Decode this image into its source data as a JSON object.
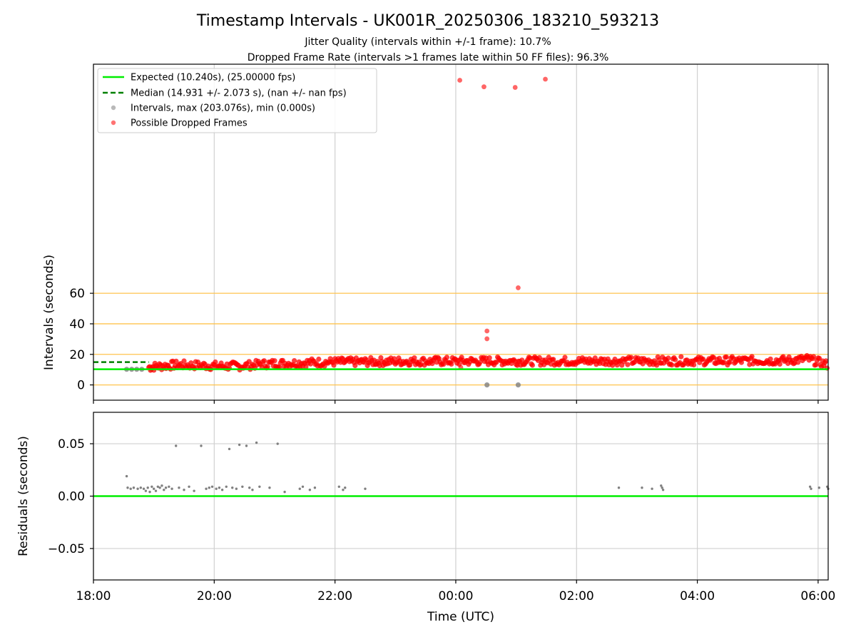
{
  "title": "Timestamp Intervals - UK001R_20250306_183210_593213",
  "subtitle_1": "Jitter Quality (intervals within +/-1 frame): 10.7%",
  "subtitle_2": "Dropped Frame Rate (intervals >1 frames late within 50 FF files): 96.3%",
  "colors": {
    "expected": "#00ee00",
    "median": "#008000",
    "intervals": "#808080",
    "dropped": "#ff0000",
    "threshold_lines": "#ffc34d",
    "grid": "#d0d0d0"
  },
  "chart_data": [
    {
      "type": "scatter",
      "ylabel": "Intervals (seconds)",
      "ylim": [
        -10,
        210
      ],
      "yticks": [
        0,
        20,
        40,
        60
      ],
      "threshold_lines": [
        0,
        20,
        40,
        60
      ],
      "grid": true,
      "legend_position": "top-left",
      "legend": [
        "Expected (10.240s), (25.00000 fps)",
        "Median (14.931 +/- 2.073 s), (nan +/- nan fps)",
        "Intervals, max (203.076s), min (0.000s)",
        "Possible Dropped Frames"
      ],
      "expected_value": 10.24,
      "median_value": 14.931,
      "median_x_range": [
        "18:00",
        "18:55"
      ],
      "xlim": [
        "18:00",
        "06:10"
      ],
      "xticks": [
        "18:00",
        "20:00",
        "22:00",
        "00:00",
        "02:00",
        "04:00",
        "06:00"
      ],
      "series": [
        {
          "name": "Intervals, max (203.076s), min (0.000s)",
          "points": [
            [
              "18:33",
              10.24
            ],
            [
              "18:38",
              10.24
            ],
            [
              "18:43",
              10.24
            ],
            [
              "18:48",
              10.24
            ],
            [
              "00:31",
              0
            ],
            [
              "01:02",
              0
            ]
          ]
        },
        {
          "name": "Possible Dropped Frames",
          "points": [
            [
              "00:04",
              199.5
            ],
            [
              "00:28",
              195.2
            ],
            [
              "00:59",
              194.8
            ],
            [
              "01:29",
              200.2
            ],
            [
              "01:02",
              63.6
            ],
            [
              "00:31",
              35.3
            ],
            [
              "00:31",
              30.2
            ],
            [
              "00:05",
              11.5
            ]
          ],
          "band": [
            [
              "18:55",
              11.5
            ],
            [
              "19:00",
              12.0
            ],
            [
              "19:10",
              12.5
            ],
            [
              "19:20",
              13.0
            ],
            [
              "19:30",
              13.0
            ],
            [
              "19:45",
              12.8
            ],
            [
              "20:00",
              12.5
            ],
            [
              "20:15",
              12.3
            ],
            [
              "20:30",
              12.5
            ],
            [
              "20:45",
              13.5
            ],
            [
              "21:00",
              14.0
            ],
            [
              "21:15",
              14.2
            ],
            [
              "21:30",
              14.5
            ],
            [
              "21:45",
              14.8
            ],
            [
              "22:00",
              15.0
            ],
            [
              "22:20",
              15.0
            ],
            [
              "22:40",
              15.2
            ],
            [
              "23:00",
              15.4
            ],
            [
              "23:20",
              15.5
            ],
            [
              "23:40",
              15.5
            ],
            [
              "00:00",
              15.5
            ],
            [
              "00:30",
              15.6
            ],
            [
              "01:00",
              15.6
            ],
            [
              "01:30",
              15.6
            ],
            [
              "02:00",
              15.6
            ],
            [
              "02:30",
              15.6
            ],
            [
              "03:00",
              15.6
            ],
            [
              "03:30",
              15.7
            ],
            [
              "04:00",
              15.7
            ],
            [
              "04:30",
              15.8
            ],
            [
              "05:00",
              15.9
            ],
            [
              "05:30",
              16.0
            ],
            [
              "05:50",
              17.0
            ],
            [
              "06:00",
              15.0
            ],
            [
              "06:10",
              13.0
            ]
          ]
        }
      ]
    },
    {
      "type": "scatter",
      "ylabel": "Residuals (seconds)",
      "xlabel": "Time (UTC)",
      "ylim": [
        -0.08,
        0.08
      ],
      "yticks": [
        "0.05",
        "0.00",
        "−0.05"
      ],
      "ytick_values": [
        0.05,
        0.0,
        -0.05
      ],
      "grid": true,
      "zero_line": 0,
      "xlim": [
        "18:00",
        "06:10"
      ],
      "xticks": [
        "18:00",
        "20:00",
        "22:00",
        "00:00",
        "02:00",
        "04:00",
        "06:00"
      ],
      "points": [
        [
          "18:33",
          0.019
        ],
        [
          "18:34",
          0.008
        ],
        [
          "18:37",
          0.007
        ],
        [
          "18:40",
          0.008
        ],
        [
          "18:44",
          0.007
        ],
        [
          "18:47",
          0.008
        ],
        [
          "18:50",
          0.007
        ],
        [
          "18:52",
          0.005
        ],
        [
          "18:54",
          0.008
        ],
        [
          "18:56",
          0.004
        ],
        [
          "18:58",
          0.009
        ],
        [
          "19:00",
          0.007
        ],
        [
          "19:02",
          0.005
        ],
        [
          "19:04",
          0.009
        ],
        [
          "19:06",
          0.008
        ],
        [
          "19:08",
          0.01
        ],
        [
          "19:10",
          0.006
        ],
        [
          "19:12",
          0.008
        ],
        [
          "19:15",
          0.009
        ],
        [
          "19:18",
          0.007
        ],
        [
          "19:22",
          0.048
        ],
        [
          "19:25",
          0.008
        ],
        [
          "19:30",
          0.006
        ],
        [
          "19:35",
          0.009
        ],
        [
          "19:40",
          0.005
        ],
        [
          "19:47",
          0.048
        ],
        [
          "19:52",
          0.007
        ],
        [
          "19:55",
          0.008
        ],
        [
          "19:58",
          0.009
        ],
        [
          "20:02",
          0.007
        ],
        [
          "20:05",
          0.008
        ],
        [
          "20:08",
          0.006
        ],
        [
          "20:12",
          0.009
        ],
        [
          "20:15",
          0.045
        ],
        [
          "20:18",
          0.008
        ],
        [
          "20:22",
          0.007
        ],
        [
          "20:25",
          0.049
        ],
        [
          "20:28",
          0.009
        ],
        [
          "20:32",
          0.048
        ],
        [
          "20:35",
          0.008
        ],
        [
          "20:38",
          0.006
        ],
        [
          "20:42",
          0.051
        ],
        [
          "20:45",
          0.009
        ],
        [
          "20:55",
          0.008
        ],
        [
          "21:03",
          0.05
        ],
        [
          "21:10",
          0.004
        ],
        [
          "21:25",
          0.007
        ],
        [
          "21:28",
          0.009
        ],
        [
          "21:35",
          0.006
        ],
        [
          "21:40",
          0.008
        ],
        [
          "22:04",
          0.009
        ],
        [
          "22:08",
          0.006
        ],
        [
          "22:10",
          0.008
        ],
        [
          "22:30",
          0.007
        ],
        [
          "02:42",
          0.008
        ],
        [
          "03:05",
          0.008
        ],
        [
          "03:15",
          0.007
        ],
        [
          "03:24",
          0.01
        ],
        [
          "03:25",
          0.008
        ],
        [
          "03:26",
          0.006
        ],
        [
          "05:52",
          0.009
        ],
        [
          "05:53",
          0.007
        ],
        [
          "06:01",
          0.008
        ],
        [
          "06:09",
          0.009
        ],
        [
          "06:10",
          0.007
        ]
      ]
    }
  ]
}
